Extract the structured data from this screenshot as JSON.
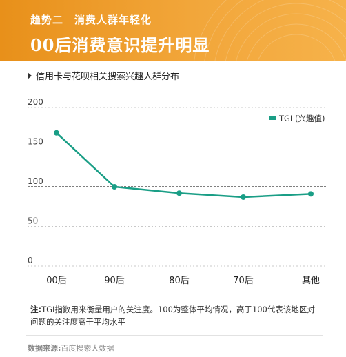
{
  "header": {
    "subtitle": "趋势二　消费人群年轻化",
    "title": "00后消费意识提升明显"
  },
  "chart_heading": "信用卡与花呗相关搜索兴趣人群分布",
  "chart_data": {
    "type": "line",
    "title": "信用卡与花呗相关搜索兴趣人群分布",
    "categories": [
      "00后",
      "90后",
      "80后",
      "70后",
      "其他"
    ],
    "series": [
      {
        "name": "TGI (兴趣值)",
        "values": [
          168,
          100,
          92,
          87,
          91
        ],
        "color": "#1a9e86"
      }
    ],
    "ylim": [
      0,
      200
    ],
    "yticks": [
      0,
      50,
      100,
      150,
      200
    ],
    "reference_line": 100,
    "grid": "dashed horizontal",
    "legend_position": "top-right"
  },
  "note": {
    "label": "注:",
    "text": "TGI指数用来衡量用户的关注度。100为整体平均情况，高于100代表该地区对问题的关注度高于平均水平"
  },
  "source": {
    "label": "数据来源:",
    "text": "百度搜索大数据"
  }
}
